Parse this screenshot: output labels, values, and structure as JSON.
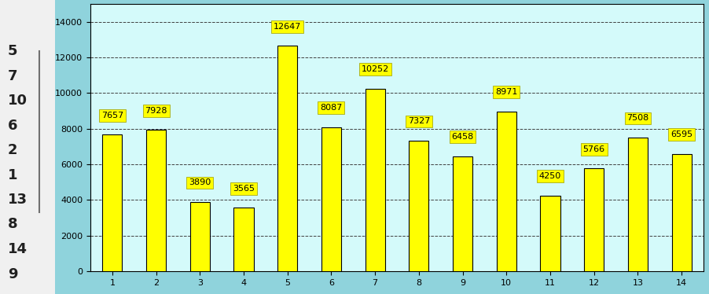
{
  "chart_data": {
    "type": "bar",
    "categories": [
      "1",
      "2",
      "3",
      "4",
      "5",
      "6",
      "7",
      "8",
      "9",
      "10",
      "11",
      "12",
      "13",
      "14"
    ],
    "values": [
      7657,
      7928,
      3890,
      3565,
      12647,
      8087,
      10252,
      7327,
      6458,
      8971,
      4250,
      5766,
      7508,
      6595
    ],
    "color": "#ffff00",
    "ylim": [
      0,
      15000
    ],
    "yticks": [
      0,
      2000,
      4000,
      6000,
      8000,
      10000,
      12000,
      14000
    ],
    "grid": true,
    "data_labels": true
  },
  "ranking": [
    5,
    7,
    10,
    6,
    2,
    1,
    13,
    8,
    14,
    9
  ]
}
